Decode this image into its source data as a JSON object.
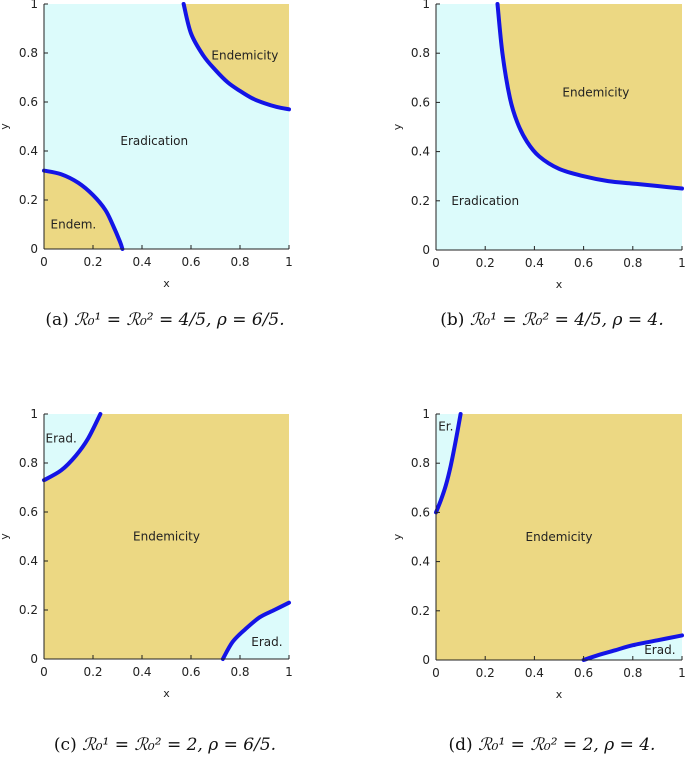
{
  "colors": {
    "eradication": "#dcfbfb",
    "endemicity": "#ecd883",
    "boundary": "#1414e6",
    "axis": "#222222"
  },
  "chart_data": [
    {
      "id": "a",
      "type": "area",
      "xlabel": "x",
      "ylabel": "y",
      "xlim": [
        0,
        1
      ],
      "ylim": [
        0,
        1
      ],
      "xticks": [
        "0",
        "0.2",
        "0.4",
        "0.6",
        "0.8",
        "1"
      ],
      "yticks": [
        "0",
        "0.2",
        "0.4",
        "0.6",
        "0.8",
        "1"
      ],
      "background_region": "eradication",
      "filled_regions": [
        {
          "region": "endemicity",
          "boundary": [
            [
              0.57,
              1
            ],
            [
              0.6,
              0.88
            ],
            [
              0.65,
              0.79
            ],
            [
              0.7,
              0.73
            ],
            [
              0.75,
              0.68
            ],
            [
              0.8,
              0.645
            ],
            [
              0.85,
              0.615
            ],
            [
              0.9,
              0.595
            ],
            [
              0.95,
              0.58
            ],
            [
              1,
              0.57
            ]
          ],
          "close_via": [
            [
              1,
              1
            ]
          ]
        },
        {
          "region": "endemicity",
          "boundary": [
            [
              0,
              0.32
            ],
            [
              0.07,
              0.305
            ],
            [
              0.14,
              0.27
            ],
            [
              0.2,
              0.22
            ],
            [
              0.25,
              0.16
            ],
            [
              0.28,
              0.1
            ],
            [
              0.31,
              0.03
            ],
            [
              0.32,
              0
            ]
          ],
          "close_via": [
            [
              0,
              0
            ]
          ]
        }
      ],
      "boundaries": [
        [
          [
            0.57,
            1
          ],
          [
            0.6,
            0.88
          ],
          [
            0.65,
            0.79
          ],
          [
            0.7,
            0.73
          ],
          [
            0.75,
            0.68
          ],
          [
            0.8,
            0.645
          ],
          [
            0.85,
            0.615
          ],
          [
            0.9,
            0.595
          ],
          [
            0.95,
            0.58
          ],
          [
            1,
            0.57
          ]
        ],
        [
          [
            0,
            0.32
          ],
          [
            0.07,
            0.305
          ],
          [
            0.14,
            0.27
          ],
          [
            0.2,
            0.22
          ],
          [
            0.25,
            0.16
          ],
          [
            0.28,
            0.1
          ],
          [
            0.31,
            0.03
          ],
          [
            0.32,
            0
          ]
        ]
      ],
      "annotations": [
        {
          "text": "Endemicity",
          "x": 0.82,
          "y": 0.79
        },
        {
          "text": "Eradication",
          "x": 0.45,
          "y": 0.44
        },
        {
          "text": "Endem.",
          "x": 0.12,
          "y": 0.1
        }
      ]
    },
    {
      "id": "b",
      "type": "area",
      "xlabel": "x",
      "ylabel": "y",
      "xlim": [
        0,
        1
      ],
      "ylim": [
        0,
        1
      ],
      "xticks": [
        "0",
        "0.2",
        "0.4",
        "0.6",
        "0.8",
        "1"
      ],
      "yticks": [
        "0",
        "0.2",
        "0.4",
        "0.6",
        "0.8",
        "1"
      ],
      "background_region": "eradication",
      "filled_regions": [
        {
          "region": "endemicity",
          "boundary": [
            [
              0.25,
              1
            ],
            [
              0.27,
              0.8
            ],
            [
              0.3,
              0.62
            ],
            [
              0.33,
              0.52
            ],
            [
              0.37,
              0.44
            ],
            [
              0.42,
              0.38
            ],
            [
              0.5,
              0.33
            ],
            [
              0.6,
              0.3
            ],
            [
              0.7,
              0.28
            ],
            [
              0.8,
              0.27
            ],
            [
              0.9,
              0.26
            ],
            [
              1,
              0.25
            ]
          ],
          "close_via": [
            [
              1,
              1
            ]
          ]
        }
      ],
      "boundaries": [
        [
          [
            0.25,
            1
          ],
          [
            0.27,
            0.8
          ],
          [
            0.3,
            0.62
          ],
          [
            0.33,
            0.52
          ],
          [
            0.37,
            0.44
          ],
          [
            0.42,
            0.38
          ],
          [
            0.5,
            0.33
          ],
          [
            0.6,
            0.3
          ],
          [
            0.7,
            0.28
          ],
          [
            0.8,
            0.27
          ],
          [
            0.9,
            0.26
          ],
          [
            1,
            0.25
          ]
        ]
      ],
      "annotations": [
        {
          "text": "Endemicity",
          "x": 0.65,
          "y": 0.64
        },
        {
          "text": "Eradication",
          "x": 0.2,
          "y": 0.2
        }
      ]
    },
    {
      "id": "c",
      "type": "area",
      "xlabel": "x",
      "ylabel": "y",
      "xlim": [
        0,
        1
      ],
      "ylim": [
        0,
        1
      ],
      "xticks": [
        "0",
        "0.2",
        "0.4",
        "0.6",
        "0.8",
        "1"
      ],
      "yticks": [
        "0",
        "0.2",
        "0.4",
        "0.6",
        "0.8",
        "1"
      ],
      "background_region": "endemicity",
      "filled_regions": [
        {
          "region": "eradication",
          "boundary": [
            [
              0,
              0.73
            ],
            [
              0.07,
              0.77
            ],
            [
              0.13,
              0.83
            ],
            [
              0.18,
              0.9
            ],
            [
              0.23,
              1
            ]
          ],
          "close_via": [
            [
              0,
              1
            ]
          ]
        },
        {
          "region": "eradication",
          "boundary": [
            [
              0.73,
              0
            ],
            [
              0.77,
              0.07
            ],
            [
              0.82,
              0.12
            ],
            [
              0.88,
              0.17
            ],
            [
              0.94,
              0.2
            ],
            [
              1,
              0.23
            ]
          ],
          "close_via": [
            [
              1,
              0
            ]
          ]
        }
      ],
      "boundaries": [
        [
          [
            0,
            0.73
          ],
          [
            0.07,
            0.77
          ],
          [
            0.13,
            0.83
          ],
          [
            0.18,
            0.9
          ],
          [
            0.23,
            1
          ]
        ],
        [
          [
            0.73,
            0
          ],
          [
            0.77,
            0.07
          ],
          [
            0.82,
            0.12
          ],
          [
            0.88,
            0.17
          ],
          [
            0.94,
            0.2
          ],
          [
            1,
            0.23
          ]
        ]
      ],
      "annotations": [
        {
          "text": "Erad.",
          "x": 0.07,
          "y": 0.9
        },
        {
          "text": "Endemicity",
          "x": 0.5,
          "y": 0.5
        },
        {
          "text": "Erad.",
          "x": 0.91,
          "y": 0.07
        }
      ]
    },
    {
      "id": "d",
      "type": "area",
      "xlabel": "x",
      "ylabel": "y",
      "xlim": [
        0,
        1
      ],
      "ylim": [
        0,
        1
      ],
      "xticks": [
        "0",
        "0.2",
        "0.4",
        "0.6",
        "0.8",
        "1"
      ],
      "yticks": [
        "0",
        "0.2",
        "0.4",
        "0.6",
        "0.8",
        "1"
      ],
      "background_region": "endemicity",
      "filled_regions": [
        {
          "region": "eradication",
          "boundary": [
            [
              0,
              0.6
            ],
            [
              0.02,
              0.65
            ],
            [
              0.04,
              0.71
            ],
            [
              0.06,
              0.79
            ],
            [
              0.08,
              0.89
            ],
            [
              0.1,
              1
            ]
          ],
          "close_via": [
            [
              0,
              1
            ]
          ]
        },
        {
          "region": "eradication",
          "boundary": [
            [
              0.6,
              0
            ],
            [
              0.66,
              0.02
            ],
            [
              0.73,
              0.04
            ],
            [
              0.8,
              0.06
            ],
            [
              0.9,
              0.08
            ],
            [
              1,
              0.1
            ]
          ],
          "close_via": [
            [
              1,
              0
            ]
          ]
        }
      ],
      "boundaries": [
        [
          [
            0,
            0.6
          ],
          [
            0.02,
            0.65
          ],
          [
            0.04,
            0.71
          ],
          [
            0.06,
            0.79
          ],
          [
            0.08,
            0.89
          ],
          [
            0.1,
            1
          ]
        ],
        [
          [
            0.6,
            0
          ],
          [
            0.66,
            0.02
          ],
          [
            0.73,
            0.04
          ],
          [
            0.8,
            0.06
          ],
          [
            0.9,
            0.08
          ],
          [
            1,
            0.1
          ]
        ]
      ],
      "annotations": [
        {
          "text": "Er.",
          "x": 0.04,
          "y": 0.95
        },
        {
          "text": "Endemicity",
          "x": 0.5,
          "y": 0.5
        },
        {
          "text": "Erad.",
          "x": 0.91,
          "y": 0.04
        }
      ]
    }
  ],
  "captions": [
    {
      "id": "a",
      "label": "(a)",
      "math": "ℛ₀¹ = ℛ₀² = 4/5, ρ = 6/5."
    },
    {
      "id": "b",
      "label": "(b)",
      "math": "ℛ₀¹ = ℛ₀² = 4/5, ρ = 4."
    },
    {
      "id": "c",
      "label": "(c)",
      "math": "ℛ₀¹ = ℛ₀² = 2, ρ = 6/5."
    },
    {
      "id": "d",
      "label": "(d)",
      "math": "ℛ₀¹ = ℛ₀² = 2, ρ = 4."
    }
  ]
}
